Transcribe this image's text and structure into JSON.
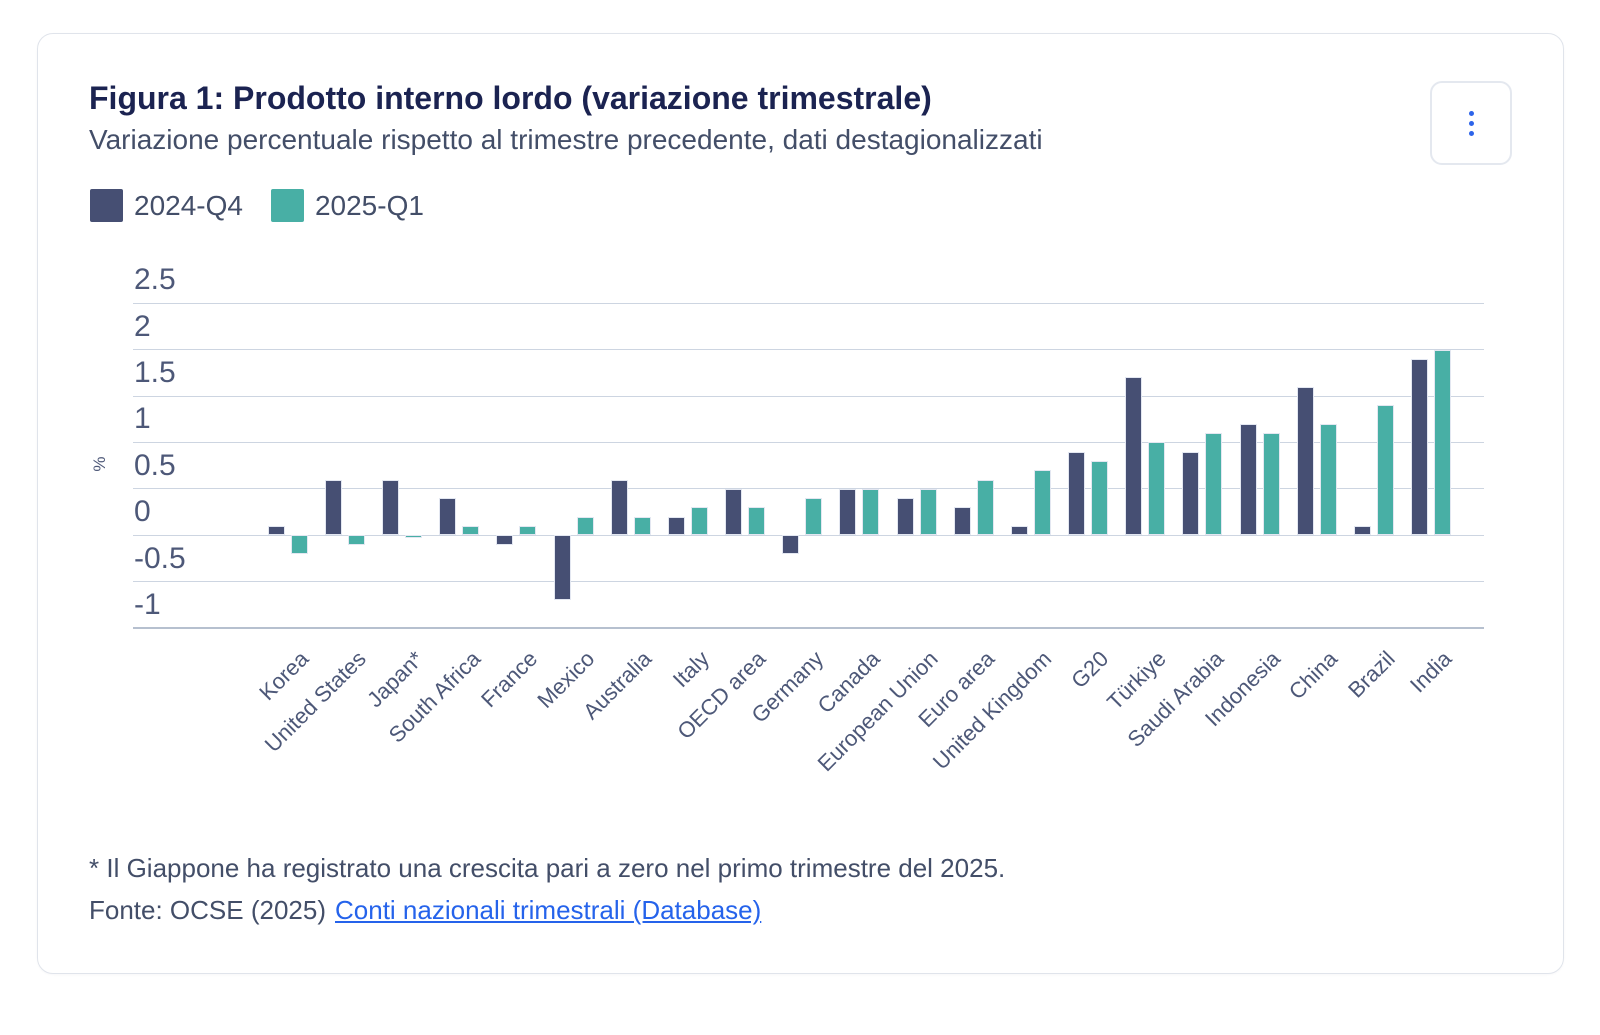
{
  "card": {
    "title": "Figura 1: Prodotto interno lordo (variazione trimestrale)",
    "subtitle": "Variazione percentuale rispetto al trimestre precedente, dati destagionalizzati",
    "footnote": "* Il Giappone ha registrato una crescita pari a zero nel primo trimestre del 2025.",
    "source_prefix": "Fonte: OCSE (2025)",
    "source_link": "Conti nazionali trimestrali (Database)"
  },
  "legend": [
    {
      "label": "2024-Q4",
      "color": "#464f73"
    },
    {
      "label": "2025-Q1",
      "color": "#48afa5"
    }
  ],
  "colors": {
    "title": "#1b2351",
    "text": "#434e68",
    "axis_text": "#4d5878",
    "gridline": "#cdd5e1",
    "axis_line": "#b6c0cf",
    "series_2024q4": "#464f73",
    "series_2025q1": "#48afa5",
    "link": "#2563eb",
    "menu_dots": "#2d64ea",
    "card_border": "#e0e4eb"
  },
  "chart_data": {
    "type": "bar",
    "title": "Figura 1: Prodotto interno lordo (variazione trimestrale)",
    "subtitle": "Variazione percentuale rispetto al trimestre precedente, dati destagionalizzati",
    "ylabel": "%",
    "ylim": [
      -1,
      2.5
    ],
    "yticks": [
      2.5,
      2,
      1.5,
      1,
      0.5,
      0,
      -0.5,
      -1
    ],
    "grid": true,
    "legend_position": "top-left",
    "categories": [
      "Korea",
      "United States",
      "Japan*",
      "South Africa",
      "France",
      "Mexico",
      "Australia",
      "Italy",
      "OECD area",
      "Germany",
      "Canada",
      "European Union",
      "Euro area",
      "United Kingdom",
      "G20",
      "Türkiye",
      "Saudi Arabia",
      "Indonesia",
      "China",
      "Brazil",
      "India"
    ],
    "series": [
      {
        "name": "2024-Q4",
        "color": "#464f73",
        "values": [
          0.1,
          0.6,
          0.6,
          0.4,
          -0.1,
          -0.7,
          0.6,
          0.2,
          0.5,
          -0.2,
          0.5,
          0.4,
          0.3,
          0.1,
          0.9,
          1.7,
          0.9,
          1.2,
          1.6,
          0.1,
          1.9
        ]
      },
      {
        "name": "2025-Q1",
        "color": "#48afa5",
        "values": [
          -0.2,
          -0.1,
          0.0,
          0.1,
          0.1,
          0.2,
          0.2,
          0.3,
          0.3,
          0.4,
          0.5,
          0.5,
          0.6,
          0.7,
          0.8,
          1.0,
          1.1,
          1.1,
          1.2,
          1.4,
          2.0
        ]
      }
    ]
  }
}
